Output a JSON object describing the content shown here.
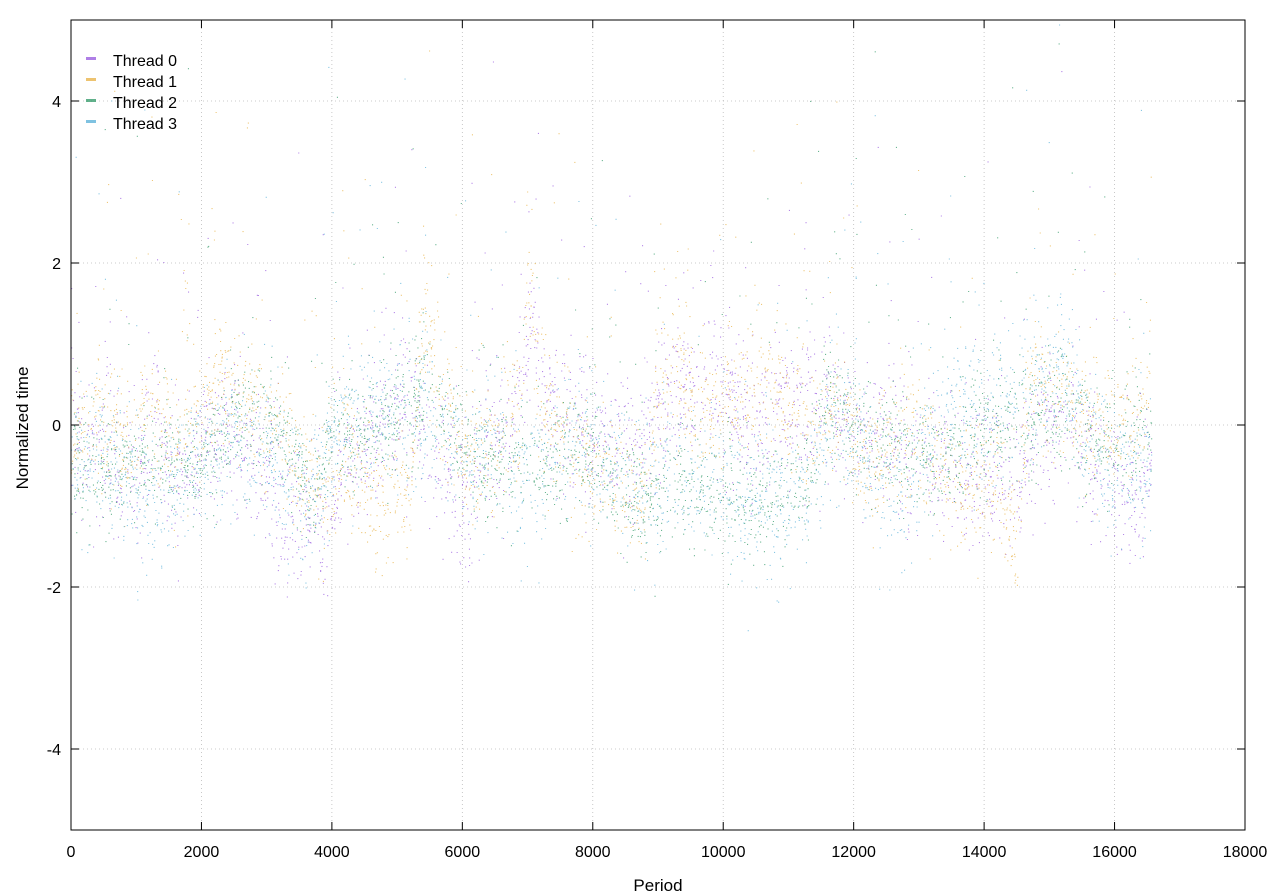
{
  "chart_data": {
    "type": "scatter",
    "xlabel": "Period",
    "ylabel": "Normalized time",
    "xlim": [
      0,
      18000
    ],
    "ylim": [
      -5,
      5
    ],
    "x_ticks": [
      0,
      2000,
      4000,
      6000,
      8000,
      10000,
      12000,
      14000,
      16000,
      18000
    ],
    "y_ticks": [
      -4,
      -2,
      0,
      2,
      4
    ],
    "grid": true,
    "legend": "top-left",
    "point_count_per_series": 16560,
    "series": [
      {
        "name": "Thread 0",
        "color": "#9b5fe0",
        "trend": [
          [
            0,
            -0.4
          ],
          [
            500,
            -0.2
          ],
          [
            1000,
            -0.8
          ],
          [
            1300,
            0.4
          ],
          [
            1500,
            -0.9
          ],
          [
            1800,
            -0.5
          ],
          [
            2100,
            -0.2
          ],
          [
            2400,
            -0.1
          ],
          [
            2700,
            -0.3
          ],
          [
            3000,
            -0.6
          ],
          [
            3300,
            -1.2
          ],
          [
            3600,
            -1.2
          ],
          [
            3900,
            -1.5
          ],
          [
            4100,
            -0.5
          ],
          [
            4500,
            -0.3
          ],
          [
            4800,
            0.0
          ],
          [
            5200,
            0.2
          ],
          [
            5500,
            -0.3
          ],
          [
            5800,
            -0.6
          ],
          [
            6100,
            -0.9
          ],
          [
            6300,
            -0.3
          ],
          [
            6600,
            -0.2
          ],
          [
            6900,
            0.5
          ],
          [
            7100,
            1.2
          ],
          [
            7300,
            0.3
          ],
          [
            7600,
            0.1
          ],
          [
            8000,
            -0.2
          ],
          [
            8300,
            -0.2
          ],
          [
            8700,
            -0.3
          ],
          [
            9000,
            0.2
          ],
          [
            9200,
            0.6
          ],
          [
            9500,
            0.4
          ],
          [
            9800,
            0.4
          ],
          [
            10100,
            0.3
          ],
          [
            10400,
            -0.1
          ],
          [
            10700,
            0.0
          ],
          [
            11000,
            0.1
          ],
          [
            11300,
            0.3
          ],
          [
            11700,
            0.1
          ],
          [
            12100,
            -0.2
          ],
          [
            12500,
            0.0
          ],
          [
            12800,
            -0.5
          ],
          [
            13100,
            -0.4
          ],
          [
            13500,
            -0.5
          ],
          [
            13900,
            -0.6
          ],
          [
            14200,
            -0.7
          ],
          [
            14500,
            -0.7
          ],
          [
            14800,
            -0.1
          ],
          [
            15200,
            0.0
          ],
          [
            15600,
            -0.4
          ],
          [
            16000,
            -0.7
          ],
          [
            16300,
            -0.9
          ],
          [
            16560,
            -0.5
          ]
        ],
        "spread": 0.45
      },
      {
        "name": "Thread 1",
        "color": "#e8b44c",
        "trend": [
          [
            0,
            -0.1
          ],
          [
            400,
            0.1
          ],
          [
            800,
            -0.2
          ],
          [
            1200,
            0.2
          ],
          [
            1600,
            -0.3
          ],
          [
            2000,
            0.1
          ],
          [
            2300,
            0.6
          ],
          [
            2600,
            0.3
          ],
          [
            2900,
            0.2
          ],
          [
            3200,
            0.0
          ],
          [
            3600,
            -0.6
          ],
          [
            3900,
            -0.9
          ],
          [
            4200,
            -0.4
          ],
          [
            4600,
            -1.0
          ],
          [
            4900,
            -0.8
          ],
          [
            5200,
            -0.9
          ],
          [
            5400,
            1.5
          ],
          [
            5700,
            0.3
          ],
          [
            6100,
            -0.4
          ],
          [
            6500,
            -0.3
          ],
          [
            6900,
            0.2
          ],
          [
            7000,
            2.0
          ],
          [
            7200,
            0.3
          ],
          [
            7600,
            -0.2
          ],
          [
            8000,
            -0.6
          ],
          [
            8400,
            -0.8
          ],
          [
            8800,
            -0.9
          ],
          [
            9000,
            0.5
          ],
          [
            9200,
            0.8
          ],
          [
            9500,
            0.3
          ],
          [
            9800,
            0.1
          ],
          [
            10200,
            0.3
          ],
          [
            10600,
            0.6
          ],
          [
            11000,
            0.2
          ],
          [
            11400,
            0.0
          ],
          [
            11800,
            0.2
          ],
          [
            12200,
            -0.5
          ],
          [
            12600,
            -0.2
          ],
          [
            13000,
            -0.3
          ],
          [
            13400,
            -0.6
          ],
          [
            13800,
            -0.7
          ],
          [
            14200,
            -0.8
          ],
          [
            14500,
            -1.5
          ],
          [
            14700,
            0.5
          ],
          [
            15000,
            0.4
          ],
          [
            15300,
            0.2
          ],
          [
            15700,
            0.0
          ],
          [
            16100,
            0.0
          ],
          [
            16400,
            0.2
          ],
          [
            16560,
            0.8
          ]
        ],
        "spread": 0.4
      },
      {
        "name": "Thread 2",
        "color": "#3a9e6e",
        "trend": [
          [
            0,
            -0.5
          ],
          [
            500,
            -0.6
          ],
          [
            900,
            -0.5
          ],
          [
            1400,
            -0.4
          ],
          [
            1800,
            -0.6
          ],
          [
            2200,
            -0.3
          ],
          [
            2600,
            0.1
          ],
          [
            3000,
            0.1
          ],
          [
            3300,
            -0.2
          ],
          [
            3700,
            -0.9
          ],
          [
            4000,
            -0.1
          ],
          [
            4500,
            -0.1
          ],
          [
            5000,
            0.1
          ],
          [
            5400,
            0.4
          ],
          [
            5800,
            0.1
          ],
          [
            6100,
            -0.3
          ],
          [
            6500,
            -0.5
          ],
          [
            6900,
            -0.5
          ],
          [
            7300,
            -0.5
          ],
          [
            7700,
            -0.3
          ],
          [
            8100,
            -0.5
          ],
          [
            8500,
            -0.8
          ],
          [
            8900,
            -1.0
          ],
          [
            9300,
            -0.6
          ],
          [
            9700,
            -0.8
          ],
          [
            10100,
            -0.9
          ],
          [
            10500,
            -1.0
          ],
          [
            10900,
            -0.9
          ],
          [
            11300,
            -0.6
          ],
          [
            11600,
            0.5
          ],
          [
            12000,
            0.0
          ],
          [
            12400,
            -0.2
          ],
          [
            12800,
            -0.3
          ],
          [
            13200,
            -0.4
          ],
          [
            13600,
            -0.3
          ],
          [
            14000,
            0.1
          ],
          [
            14400,
            0.0
          ],
          [
            14800,
            0.2
          ],
          [
            15200,
            0.3
          ],
          [
            15600,
            -0.1
          ],
          [
            16000,
            -0.3
          ],
          [
            16400,
            -0.1
          ],
          [
            16560,
            0.0
          ]
        ],
        "spread": 0.35
      },
      {
        "name": "Thread 3",
        "color": "#5fb3d9",
        "trend": [
          [
            0,
            -0.5
          ],
          [
            400,
            -0.3
          ],
          [
            800,
            -0.7
          ],
          [
            1200,
            -1.0
          ],
          [
            1600,
            -0.8
          ],
          [
            2000,
            -0.4
          ],
          [
            2400,
            -0.2
          ],
          [
            2800,
            -0.3
          ],
          [
            3200,
            -0.5
          ],
          [
            3600,
            -0.9
          ],
          [
            4000,
            -0.3
          ],
          [
            4400,
            0.1
          ],
          [
            4800,
            0.2
          ],
          [
            5200,
            0.2
          ],
          [
            5600,
            0.0
          ],
          [
            6000,
            -0.6
          ],
          [
            6400,
            -0.2
          ],
          [
            6800,
            -0.7
          ],
          [
            7200,
            -0.6
          ],
          [
            7600,
            -0.1
          ],
          [
            8000,
            -0.3
          ],
          [
            8400,
            -0.6
          ],
          [
            8800,
            -0.8
          ],
          [
            9200,
            -0.6
          ],
          [
            9600,
            -0.7
          ],
          [
            10000,
            -0.9
          ],
          [
            10400,
            -1.0
          ],
          [
            10800,
            -0.9
          ],
          [
            11200,
            -0.9
          ],
          [
            11600,
            -0.2
          ],
          [
            12000,
            0.0
          ],
          [
            12400,
            -0.9
          ],
          [
            12800,
            -1.0
          ],
          [
            13200,
            -0.2
          ],
          [
            13600,
            0.3
          ],
          [
            14000,
            0.1
          ],
          [
            14400,
            0.2
          ],
          [
            14800,
            0.4
          ],
          [
            15200,
            0.7
          ],
          [
            15600,
            -0.2
          ],
          [
            16000,
            -0.6
          ],
          [
            16400,
            -0.7
          ],
          [
            16560,
            -0.5
          ]
        ],
        "spread": 0.45
      }
    ]
  }
}
